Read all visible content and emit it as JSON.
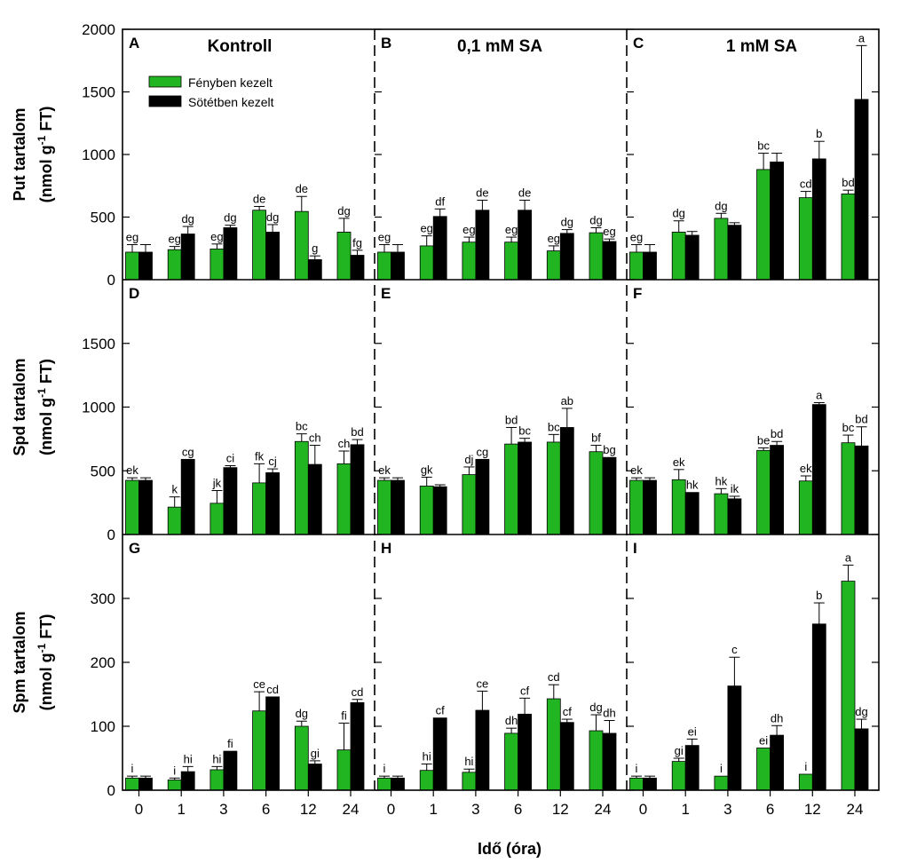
{
  "chart_data": {
    "type": "bar",
    "x_categories": [
      "0",
      "1",
      "3",
      "6",
      "12",
      "24"
    ],
    "xlabel": "Idő (óra)",
    "legend": [
      {
        "name": "Fényben kezelt",
        "color": "#21b521"
      },
      {
        "name": "Sötétben kezelt",
        "color": "#000000"
      }
    ],
    "columns": [
      {
        "title": "Kontroll"
      },
      {
        "title": "0,1 mM SA"
      },
      {
        "title": "1 mM SA"
      }
    ],
    "rows": [
      {
        "ylabel_main": "Put tartalom",
        "ylabel_unit_pre": "(nmol g",
        "ylabel_unit_sup": "-1",
        "ylabel_unit_post": " FT)",
        "ylim": [
          0,
          2000
        ],
        "yticks": [
          0,
          500,
          1000,
          1500,
          2000
        ]
      },
      {
        "ylabel_main": "Spd tartalom",
        "ylabel_unit_pre": "(nmol g",
        "ylabel_unit_sup": "-1",
        "ylabel_unit_post": " FT)",
        "ylim": [
          0,
          2000
        ],
        "yticks": [
          0,
          500,
          1000,
          1500
        ]
      },
      {
        "ylabel_main": "Spm tartalom",
        "ylabel_unit_pre": "(nmol g",
        "ylabel_unit_sup": "-1",
        "ylabel_unit_post": " FT)",
        "ylim": [
          0,
          400
        ],
        "yticks": [
          0,
          100,
          200,
          300
        ]
      }
    ],
    "panels": [
      {
        "letter": "A",
        "row": 0,
        "col": 0,
        "light": [
          220,
          240,
          245,
          555,
          545,
          380
        ],
        "light_err": [
          60,
          25,
          40,
          30,
          120,
          110
        ],
        "light_sig": [
          "eg",
          "eg",
          "eg",
          "de",
          "de",
          "dg"
        ],
        "dark": [
          220,
          365,
          415,
          380,
          160,
          195
        ],
        "dark_err": [
          60,
          60,
          20,
          60,
          30,
          40
        ],
        "dark_sig": [
          "",
          "dg",
          "dg",
          "dg",
          "g",
          "fg"
        ]
      },
      {
        "letter": "B",
        "row": 0,
        "col": 1,
        "light": [
          220,
          270,
          300,
          300,
          230,
          375
        ],
        "light_err": [
          60,
          80,
          40,
          40,
          40,
          40
        ],
        "light_sig": [
          "eg",
          "eg",
          "eg",
          "eg",
          "eg",
          "dg"
        ],
        "dark": [
          220,
          505,
          555,
          555,
          370,
          305
        ],
        "dark_err": [
          60,
          60,
          80,
          80,
          30,
          20
        ],
        "dark_sig": [
          "",
          "df",
          "de",
          "de",
          "dg",
          "eg"
        ]
      },
      {
        "letter": "C",
        "row": 0,
        "col": 2,
        "light": [
          220,
          380,
          490,
          880,
          655,
          685
        ],
        "light_err": [
          60,
          90,
          40,
          130,
          50,
          30
        ],
        "light_sig": [
          "eg",
          "dg",
          "dg",
          "bc",
          "cd",
          "bd"
        ],
        "dark": [
          220,
          355,
          435,
          940,
          965,
          1440
        ],
        "dark_err": [
          60,
          30,
          20,
          70,
          140,
          430
        ],
        "dark_sig": [
          "",
          "",
          "",
          "",
          "b",
          "a"
        ]
      },
      {
        "letter": "D",
        "row": 1,
        "col": 0,
        "light": [
          425,
          215,
          245,
          405,
          730,
          555
        ],
        "light_err": [
          20,
          80,
          100,
          150,
          60,
          100
        ],
        "light_sig": [
          "ek",
          "k",
          "jk",
          "fk",
          "bc",
          "ch"
        ],
        "dark": [
          425,
          590,
          525,
          485,
          550,
          705
        ],
        "dark_err": [
          20,
          0,
          15,
          30,
          150,
          40
        ],
        "dark_sig": [
          "",
          "cg",
          "ci",
          "cj",
          "ch",
          "bd"
        ]
      },
      {
        "letter": "E",
        "row": 1,
        "col": 1,
        "light": [
          425,
          380,
          470,
          710,
          725,
          650
        ],
        "light_err": [
          20,
          70,
          60,
          130,
          60,
          50
        ],
        "light_sig": [
          "ek",
          "gk",
          "dj",
          "bd",
          "bc",
          "bf"
        ],
        "dark": [
          425,
          375,
          590,
          725,
          840,
          605
        ],
        "dark_err": [
          20,
          15,
          0,
          30,
          150,
          0
        ],
        "dark_sig": [
          "",
          "",
          "cg",
          "bc",
          "ab",
          "bg"
        ]
      },
      {
        "letter": "F",
        "row": 1,
        "col": 2,
        "light": [
          425,
          430,
          320,
          660,
          420,
          720
        ],
        "light_err": [
          20,
          80,
          40,
          20,
          40,
          60
        ],
        "light_sig": [
          "ek",
          "ek",
          "hk",
          "be",
          "ek",
          "bc"
        ],
        "dark": [
          425,
          330,
          280,
          700,
          1020,
          695
        ],
        "dark_err": [
          20,
          0,
          20,
          30,
          15,
          150
        ],
        "dark_sig": [
          "",
          "hk",
          "ik",
          "bd",
          "a",
          "bd"
        ]
      },
      {
        "letter": "G",
        "row": 2,
        "col": 0,
        "light": [
          19,
          16,
          32,
          124,
          100,
          63
        ],
        "light_err": [
          3,
          3,
          5,
          30,
          8,
          42
        ],
        "light_sig": [
          "i",
          "i",
          "hi",
          "ce",
          "dg",
          "fi"
        ],
        "dark": [
          19,
          29,
          61,
          146,
          41,
          137
        ],
        "dark_err": [
          3,
          8,
          0,
          0,
          5,
          5
        ],
        "dark_sig": [
          "",
          "hi",
          "fi",
          "cd",
          "gi",
          "cd"
        ]
      },
      {
        "letter": "H",
        "row": 2,
        "col": 1,
        "light": [
          19,
          31,
          28,
          89,
          143,
          93
        ],
        "light_err": [
          3,
          10,
          5,
          8,
          22,
          25
        ],
        "light_sig": [
          "i",
          "hi",
          "hi",
          "dh",
          "cd",
          "dg"
        ],
        "dark": [
          19,
          113,
          125,
          119,
          106,
          89
        ],
        "dark_err": [
          3,
          0,
          30,
          25,
          5,
          20
        ],
        "dark_sig": [
          "",
          "cf",
          "ce",
          "cf",
          "cf",
          "dh"
        ]
      },
      {
        "letter": "I",
        "row": 2,
        "col": 2,
        "light": [
          19,
          45,
          22,
          66,
          25,
          327
        ],
        "light_err": [
          3,
          5,
          0,
          0,
          0,
          25
        ],
        "light_sig": [
          "i",
          "gi",
          "i",
          "ei",
          "i",
          "a"
        ],
        "dark": [
          19,
          70,
          163,
          86,
          260,
          96
        ],
        "dark_err": [
          3,
          10,
          45,
          15,
          33,
          15
        ],
        "dark_sig": [
          "",
          "ei",
          "c",
          "dh",
          "b",
          "dg"
        ]
      }
    ]
  }
}
